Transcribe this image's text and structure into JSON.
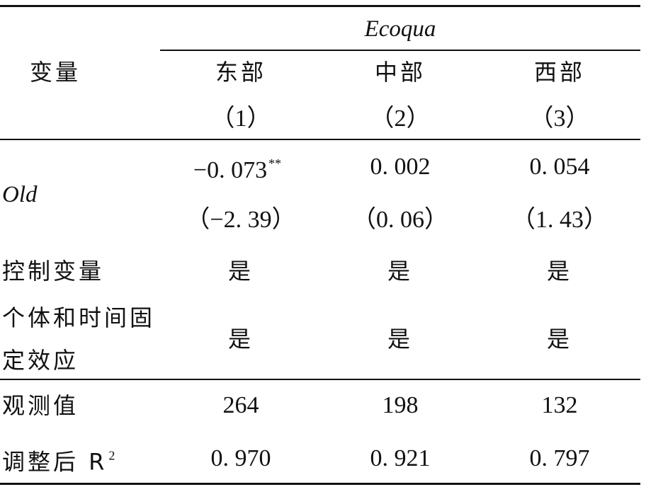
{
  "header": {
    "dependent_var": "Ecoqua",
    "row_label": "变量",
    "columns": [
      {
        "region": "东部",
        "index": "（1）"
      },
      {
        "region": "中部",
        "index": "（2）"
      },
      {
        "region": "西部",
        "index": "（3）"
      }
    ]
  },
  "rows": {
    "old": {
      "label": "Old",
      "coef": [
        "−0. 073",
        "0. 002",
        "0. 054"
      ],
      "coef_sig": [
        "**",
        "",
        ""
      ],
      "tstat": [
        "（−2. 39）",
        "（0. 06）",
        "（1. 43）"
      ]
    },
    "controls": {
      "label": "控制变量",
      "values": [
        "是",
        "是",
        "是"
      ]
    },
    "fixed_effects": {
      "label_line1": "个体和时间固",
      "label_line2": "定效应",
      "values": [
        "是",
        "是",
        "是"
      ]
    },
    "observations": {
      "label": "观测值",
      "values": [
        "264",
        "198",
        "132"
      ]
    },
    "adj_r2": {
      "label": "调整后 R",
      "label_sup": "2",
      "values": [
        "0. 970",
        "0. 921",
        "0. 797"
      ]
    }
  }
}
